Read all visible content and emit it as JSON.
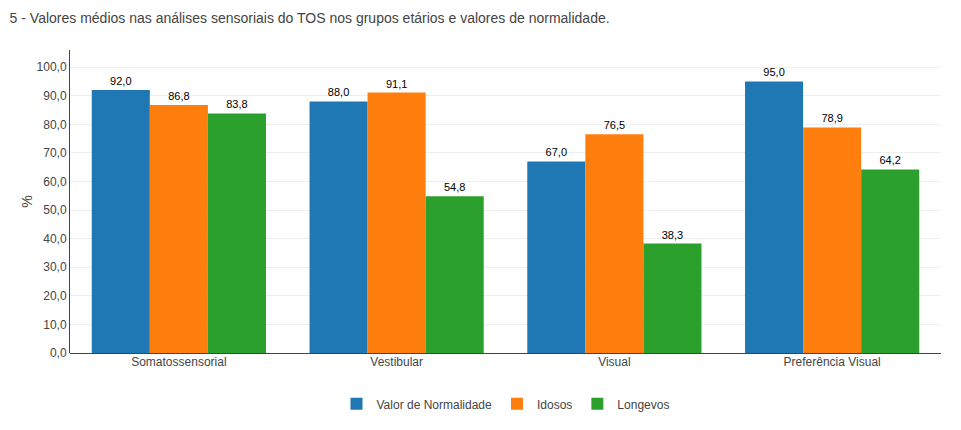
{
  "chart_data": {
    "type": "bar",
    "title": "5 - Valores médios nas análises sensoriais do TOS nos grupos etários e valores de normalidade.",
    "ylabel": "%",
    "categories": [
      "Somatossensorial",
      "Vestibular",
      "Visual",
      "Preferência Visual"
    ],
    "series": [
      {
        "name": "Valor de Normalidade",
        "values": [
          92.0,
          88.0,
          67.0,
          95.0
        ],
        "value_labels": [
          "92,0",
          "88,0",
          "67,0",
          "95,0"
        ]
      },
      {
        "name": "Idosos",
        "values": [
          86.8,
          91.1,
          76.5,
          78.9
        ],
        "value_labels": [
          "86,8",
          "91,1",
          "76,5",
          "78,9"
        ]
      },
      {
        "name": "Longevos",
        "values": [
          83.8,
          54.8,
          38.3,
          64.2
        ],
        "value_labels": [
          "83,8",
          "54,8",
          "38,3",
          "64,2"
        ]
      }
    ],
    "ylim": [
      0,
      106
    ],
    "yticks": [
      {
        "value": 0,
        "label": "0,0"
      },
      {
        "value": 10,
        "label": "10,0"
      },
      {
        "value": 20,
        "label": "20,0"
      },
      {
        "value": 30,
        "label": "30,0"
      },
      {
        "value": 40,
        "label": "40,0"
      },
      {
        "value": 50,
        "label": "50,0"
      },
      {
        "value": 60,
        "label": "60,0"
      },
      {
        "value": 70,
        "label": "70,0"
      },
      {
        "value": 80,
        "label": "80,0"
      },
      {
        "value": 90,
        "label": "90,0"
      },
      {
        "value": 100,
        "label": "100,0"
      }
    ],
    "grid": true,
    "legend": "bottom",
    "data_labels": true
  }
}
